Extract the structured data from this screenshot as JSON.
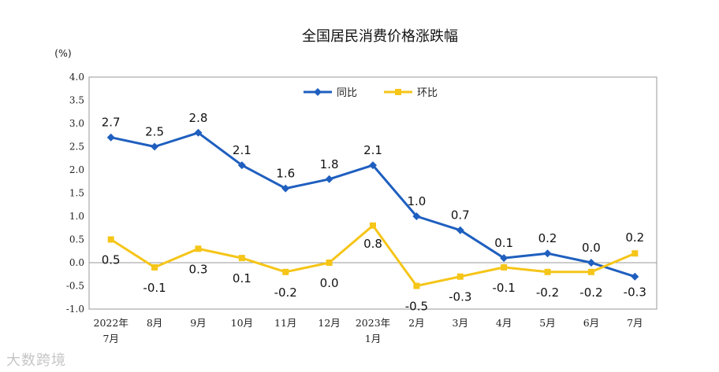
{
  "chart_data": {
    "type": "line",
    "title": "全国居民消费价格涨跌幅",
    "ylabel": "(%)",
    "xlabel": "",
    "ylim": [
      -1.0,
      4.0
    ],
    "yticks": [
      "4.0",
      "3.5",
      "3.0",
      "2.5",
      "2.0",
      "1.5",
      "1.0",
      "0.5",
      "0.0",
      "-0.5",
      "-1.0"
    ],
    "categories": [
      [
        "2022年",
        "7月"
      ],
      [
        "8月"
      ],
      [
        "9月"
      ],
      [
        "10月"
      ],
      [
        "11月"
      ],
      [
        "12月"
      ],
      [
        "2023年",
        "1月"
      ],
      [
        "2月"
      ],
      [
        "3月"
      ],
      [
        "4月"
      ],
      [
        "5月"
      ],
      [
        "6月"
      ],
      [
        "7月"
      ]
    ],
    "series": [
      {
        "name": "同比",
        "color": "#1f5fbf",
        "marker": "diamond",
        "values": [
          2.7,
          2.5,
          2.8,
          2.1,
          1.6,
          1.8,
          2.1,
          1.0,
          0.7,
          0.1,
          0.2,
          0.0,
          -0.3
        ],
        "labels": [
          "2.7",
          "2.5",
          "2.8",
          "2.1",
          "1.6",
          "1.8",
          "2.1",
          "1.0",
          "0.7",
          "0.1",
          "0.2",
          "0.0",
          "-0.3"
        ]
      },
      {
        "name": "环比",
        "color": "#f5c518",
        "marker": "square",
        "values": [
          0.5,
          -0.1,
          0.3,
          0.1,
          -0.2,
          0.0,
          0.8,
          -0.5,
          -0.3,
          -0.1,
          -0.2,
          -0.2,
          0.2
        ],
        "labels": [
          "0.5",
          "-0.1",
          "0.3",
          "0.1",
          "-0.2",
          "0.0",
          "0.8",
          "-0.5",
          "-0.3",
          "-0.1",
          "-0.2",
          "-0.2",
          "0.2"
        ]
      }
    ],
    "legend": "top-center",
    "grid": false
  },
  "watermark": "大数跨境"
}
